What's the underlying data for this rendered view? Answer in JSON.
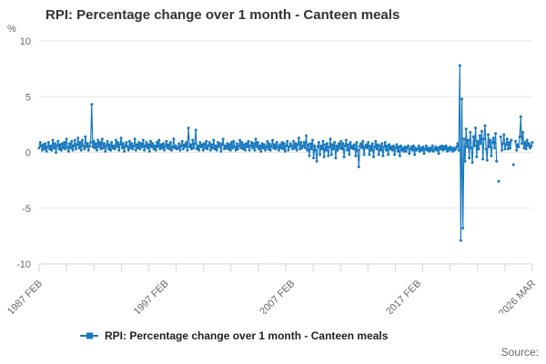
{
  "header": {
    "title": "RPI: Percentage change over 1 month - Canteen meals"
  },
  "legend": {
    "label": "RPI: Percentage change over 1 month - Canteen meals"
  },
  "footer": {
    "source_label": "Source:"
  },
  "colors": {
    "line": "#1878be",
    "grid": "#e6e6e6",
    "axis": "#ccd6eb",
    "text": "#666666",
    "title": "#333333"
  },
  "chart_data": {
    "type": "line",
    "title": "RPI: Percentage change over 1 month - Canteen meals",
    "xlabel": "",
    "ylabel": "%",
    "unit_label": "%",
    "frequency": "monthly",
    "x_start": "1987 FEB",
    "x_end": "2026 MAR",
    "ylim": [
      -10,
      10
    ],
    "y_ticks": [
      10,
      5,
      0,
      -5,
      -10
    ],
    "x_tick_labels": [
      {
        "label": "1987 FEB",
        "index": 0
      },
      {
        "label": "1997 FEB",
        "index": 120
      },
      {
        "label": "2007 FEB",
        "index": 240
      },
      {
        "label": "2017 FEB",
        "index": 360
      },
      {
        "label": "2026 MAR",
        "index": 469
      }
    ],
    "grid": true,
    "legend_position": "bottom",
    "series": [
      {
        "name": "RPI: Percentage change over 1 month - Canteen meals",
        "color": "#1878be",
        "values": [
          0.4,
          0.9,
          0.6,
          0.2,
          0.7,
          0.3,
          0.8,
          0.1,
          0.5,
          0.9,
          0.3,
          0.6,
          0.2,
          1.1,
          0.4,
          0.8,
          0.0,
          0.6,
          1.0,
          0.3,
          0.7,
          0.2,
          0.8,
          0.4,
          0.9,
          0.3,
          1.2,
          0.5,
          0.1,
          0.8,
          0.4,
          1.0,
          0.2,
          0.6,
          1.1,
          0.3,
          0.7,
          1.3,
          0.4,
          0.9,
          0.2,
          1.1,
          0.6,
          0.3,
          1.4,
          0.5,
          0.8,
          0.2,
          0.6,
          0.9,
          4.3,
          0.5,
          1.0,
          0.4,
          0.8,
          0.2,
          1.1,
          0.5,
          0.9,
          0.3,
          1.2,
          0.4,
          0.8,
          0.1,
          0.6,
          1.0,
          0.3,
          0.7,
          0.2,
          0.9,
          0.4,
          0.6,
          0.3,
          1.1,
          0.5,
          0.9,
          0.2,
          0.7,
          1.3,
          0.4,
          0.8,
          0.1,
          0.6,
          0.9,
          0.5,
          0.2,
          1.0,
          0.4,
          0.8,
          0.3,
          0.6,
          1.2,
          0.2,
          0.7,
          0.4,
          0.9,
          0.3,
          0.8,
          0.5,
          1.1,
          0.2,
          0.6,
          0.9,
          0.4,
          0.7,
          0.1,
          1.0,
          0.5,
          0.8,
          0.3,
          0.6,
          0.2,
          0.9,
          0.5,
          1.1,
          0.3,
          0.7,
          0.4,
          0.8,
          0.2,
          0.6,
          1.0,
          0.4,
          0.7,
          0.3,
          0.9,
          0.2,
          0.5,
          1.2,
          0.4,
          0.6,
          0.3,
          0.4,
          0.8,
          0.2,
          0.6,
          1.0,
          0.3,
          0.7,
          0.5,
          0.9,
          0.2,
          2.2,
          0.5,
          0.7,
          0.3,
          1.1,
          0.4,
          0.8,
          2.0,
          0.3,
          0.6,
          0.2,
          0.9,
          0.5,
          0.7,
          0.2,
          0.8,
          0.4,
          1.0,
          0.3,
          0.6,
          0.9,
          0.2,
          0.7,
          0.4,
          1.1,
          0.3,
          0.6,
          0.2,
          0.9,
          0.5,
          0.8,
          0.1,
          0.7,
          1.2,
          0.3,
          0.6,
          0.4,
          0.8,
          0.3,
          0.7,
          0.2,
          0.9,
          0.4,
          1.0,
          0.5,
          0.2,
          0.8,
          0.3,
          0.6,
          1.1,
          0.4,
          0.9,
          0.3,
          0.7,
          0.2,
          0.8,
          0.5,
          1.0,
          0.2,
          0.6,
          0.9,
          0.4,
          0.8,
          0.2,
          1.2,
          0.5,
          0.9,
          0.3,
          0.6,
          0.1,
          0.8,
          0.4,
          0.7,
          0.2,
          0.5,
          1.0,
          0.3,
          0.8,
          0.2,
          0.6,
          1.1,
          0.4,
          0.7,
          0.3,
          0.9,
          0.5,
          0.2,
          0.7,
          0.4,
          0.9,
          0.3,
          0.8,
          0.1,
          0.6,
          1.0,
          0.2,
          0.5,
          0.8,
          0.6,
          0.3,
          1.0,
          0.4,
          0.8,
          0.2,
          0.7,
          1.3,
          0.3,
          0.9,
          0.4,
          0.6,
          0.9,
          0.4,
          1.5,
          0.2,
          0.7,
          -0.3,
          0.8,
          0.3,
          1.1,
          -0.5,
          0.6,
          0.2,
          -0.8,
          0.5,
          0.9,
          -0.2,
          0.6,
          0.3,
          1.0,
          -0.4,
          0.7,
          0.2,
          0.8,
          -0.3,
          0.5,
          1.2,
          -0.2,
          0.7,
          0.3,
          0.9,
          -0.5,
          0.6,
          0.2,
          0.8,
          0.4,
          1.0,
          0.3,
          0.8,
          -0.4,
          0.6,
          1.1,
          0.2,
          0.7,
          -0.2,
          0.9,
          0.4,
          0.6,
          0.3,
          0.7,
          -0.3,
          0.9,
          0.2,
          -1.3,
          0.6,
          0.8,
          0.4,
          1.0,
          -0.2,
          0.5,
          0.7,
          0.4,
          0.9,
          -0.2,
          0.6,
          0.2,
          0.8,
          -0.4,
          0.5,
          1.0,
          0.3,
          0.7,
          -0.2,
          0.6,
          0.2,
          0.8,
          -0.3,
          0.5,
          0.9,
          0.2,
          0.6,
          -0.2,
          0.7,
          0.3,
          0.5,
          0.2,
          0.6,
          -0.2,
          0.4,
          0.7,
          0.1,
          0.5,
          -0.3,
          0.6,
          0.2,
          0.4,
          0.1,
          0.5,
          0.1,
          0.4,
          0.6,
          -0.1,
          0.3,
          0.5,
          0.2,
          0.6,
          -0.2,
          0.4,
          0.2,
          0.3,
          0.6,
          0.1,
          0.4,
          0.2,
          0.5,
          -0.1,
          0.3,
          0.6,
          0.2,
          0.4,
          0.1,
          0.4,
          0.2,
          0.6,
          0.1,
          0.3,
          0.5,
          0.2,
          0.4,
          -0.1,
          0.5,
          0.3,
          0.6,
          0.2,
          0.5,
          0.3,
          0.6,
          0.1,
          0.4,
          0.2,
          0.5,
          0.3,
          0.1,
          0.4,
          0.2,
          0.3,
          0.5,
          0.8,
          0.2,
          7.8,
          -7.9,
          4.8,
          -6.8,
          1.2,
          -0.8,
          2.1,
          0.5,
          1.1,
          -0.5,
          1.8,
          0.4,
          -0.9,
          1.4,
          0.6,
          2.2,
          -0.4,
          1.0,
          0.3,
          1.5,
          0.8,
          1.9,
          -0.6,
          1.2,
          2.4,
          0.3,
          -0.7,
          1.6,
          0.5,
          1.1,
          -0.3,
          0.9,
          1.3,
          0.4,
          1.7,
          -0.8,
          null,
          -2.6,
          null,
          1.4,
          0.2,
          0.8,
          1.6,
          0.3,
          0.7,
          1.2,
          0.3,
          0.9,
          0.4,
          1.1,
          null,
          -1.1,
          null,
          1.0,
          0.2,
          0.7,
          0.5,
          1.4,
          3.2,
          0.8,
          1.8,
          0.4,
          0.9,
          0.3,
          1.1,
          0.6,
          0.8,
          0.4,
          0.6,
          0.9
        ]
      }
    ]
  }
}
